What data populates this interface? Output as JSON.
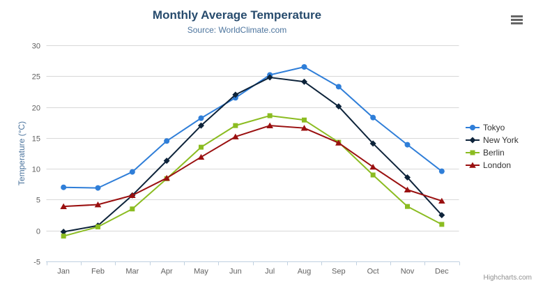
{
  "header": {
    "title": "Monthly Average Temperature",
    "subtitle": "Source: WorldClimate.com"
  },
  "toolbar": {
    "menu_icon": "hamburger-menu-icon"
  },
  "credits": {
    "label": "Highcharts.com"
  },
  "colors": {
    "title": "#274b6d",
    "subtitle": "#4d759e",
    "axis_label": "#606060",
    "axis_line": "#c0d0e0",
    "gridline": "#d8d8d8",
    "legend_text": "#333333",
    "credits_text": "#909090"
  },
  "chart_data": {
    "type": "line",
    "title": "Monthly Average Temperature",
    "subtitle": "Source: WorldClimate.com",
    "xlabel": "",
    "ylabel": "Temperature (°C)",
    "ylim": [
      -5,
      30
    ],
    "ytick_interval": 5,
    "yticks": [
      -5,
      0,
      5,
      10,
      15,
      20,
      25,
      30
    ],
    "grid": true,
    "legend_position": "right",
    "categories": [
      "Jan",
      "Feb",
      "Mar",
      "Apr",
      "May",
      "Jun",
      "Jul",
      "Aug",
      "Sep",
      "Oct",
      "Nov",
      "Dec"
    ],
    "series": [
      {
        "name": "Tokyo",
        "color": "#2f7ed8",
        "marker": "circle",
        "values": [
          7.0,
          6.9,
          9.5,
          14.5,
          18.2,
          21.5,
          25.2,
          26.5,
          23.3,
          18.3,
          13.9,
          9.6
        ]
      },
      {
        "name": "New York",
        "color": "#0d233a",
        "marker": "diamond",
        "values": [
          -0.2,
          0.8,
          5.7,
          11.3,
          17.0,
          22.0,
          24.8,
          24.1,
          20.1,
          14.1,
          8.6,
          2.5
        ]
      },
      {
        "name": "Berlin",
        "color": "#8bbc21",
        "marker": "square",
        "values": [
          -0.9,
          0.6,
          3.5,
          8.4,
          13.5,
          17.0,
          18.6,
          17.9,
          14.3,
          9.0,
          3.9,
          1.0
        ]
      },
      {
        "name": "London",
        "color": "#9a1010",
        "marker": "triangle",
        "values": [
          3.9,
          4.2,
          5.7,
          8.5,
          11.9,
          15.2,
          17.0,
          16.6,
          14.2,
          10.3,
          6.6,
          4.8
        ]
      }
    ]
  }
}
